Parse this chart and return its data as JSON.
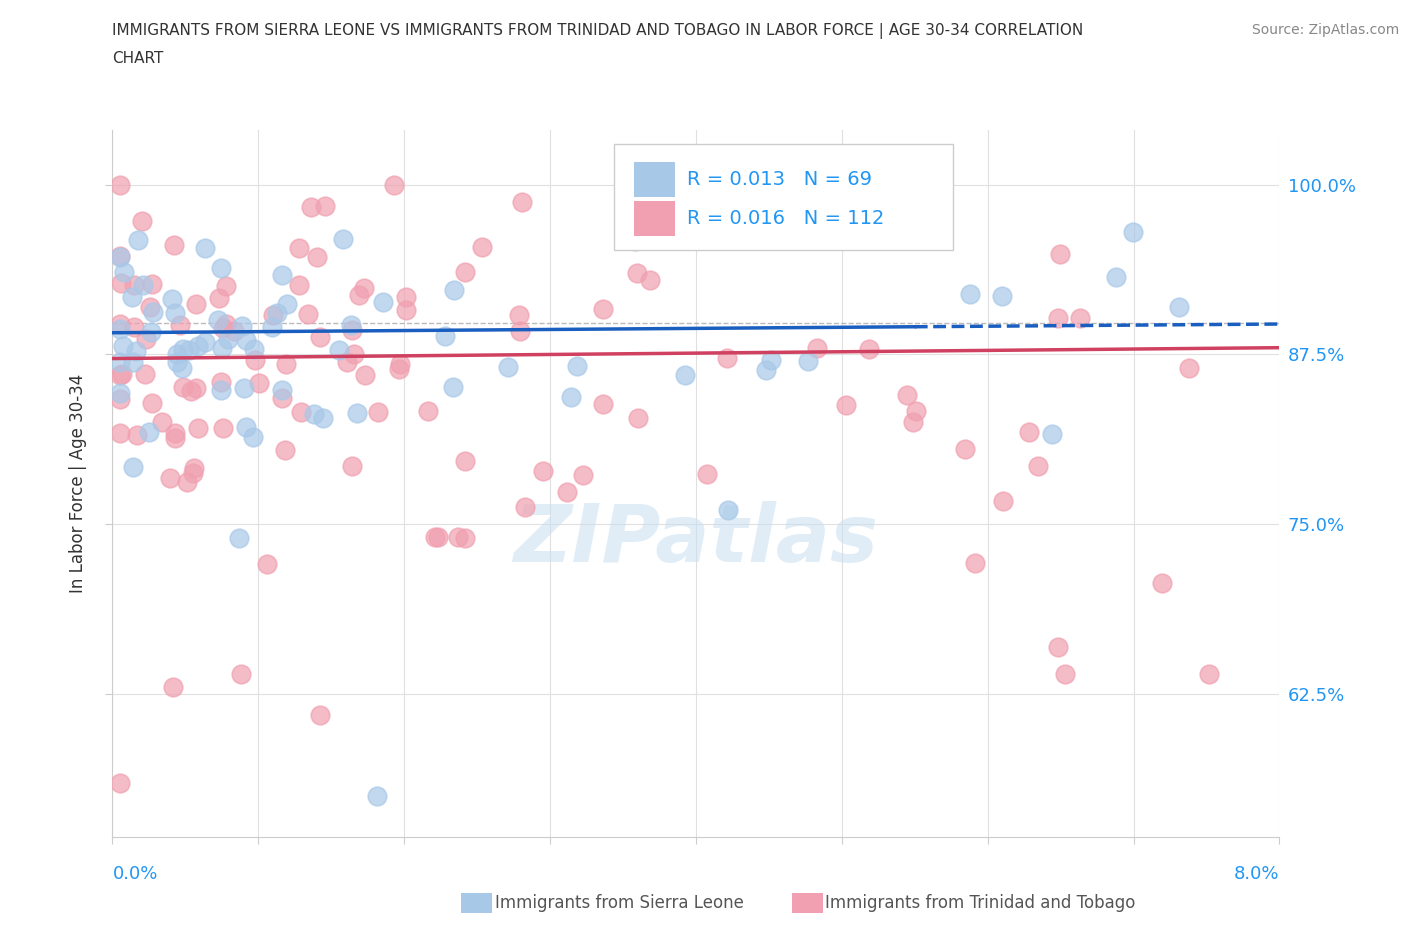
{
  "title_line1": "IMMIGRANTS FROM SIERRA LEONE VS IMMIGRANTS FROM TRINIDAD AND TOBAGO IN LABOR FORCE | AGE 30-34 CORRELATION",
  "title_line2": "CHART",
  "source_text": "Source: ZipAtlas.com",
  "ylabel": "In Labor Force | Age 30-34",
  "ytick_labels": [
    "62.5%",
    "75.0%",
    "87.5%",
    "100.0%"
  ],
  "ytick_vals": [
    0.625,
    0.75,
    0.875,
    1.0
  ],
  "xlim": [
    0.0,
    0.08
  ],
  "ylim": [
    0.52,
    1.04
  ],
  "legend_R1": "R = 0.013",
  "legend_N1": "N = 69",
  "legend_R2": "R = 0.016",
  "legend_N2": "N = 112",
  "color_blue": "#A8C8E8",
  "color_pink": "#F0A0B0",
  "color_trend_blue": "#1A5FBF",
  "color_trend_pink": "#D04060",
  "color_blue_text": "#2196F3",
  "watermark_color": "#C8DFF0",
  "legend_label1": "Immigrants from Sierra Leone",
  "legend_label2": "Immigrants from Trinidad and Tobago",
  "sl_trend_y0": 0.891,
  "sl_trend_slope": 0.08,
  "tt_trend_y0": 0.872,
  "tt_trend_slope": 0.1
}
